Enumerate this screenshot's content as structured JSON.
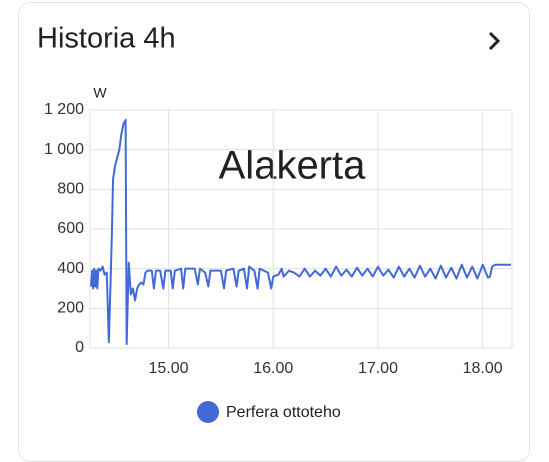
{
  "chart_data": {
    "type": "line",
    "title": "Historia 4h",
    "y_unit": "W",
    "annotation": "Alakerta",
    "annotation_color": "#e8666b",
    "grid": true,
    "legend": "bottom",
    "xlim": [
      14.25,
      18.28
    ],
    "xticks": [
      {
        "value": 15,
        "label": "15.00"
      },
      {
        "value": 16,
        "label": "16.00"
      },
      {
        "value": 17,
        "label": "17.00"
      },
      {
        "value": 18,
        "label": "18.00"
      }
    ],
    "ylim": [
      0,
      1200
    ],
    "yticks": [
      0,
      200,
      400,
      600,
      800,
      {
        "value": 1000,
        "label": "1 000"
      },
      {
        "value": 1200,
        "label": "1 200"
      }
    ],
    "x": [
      14.26,
      14.27,
      14.28,
      14.29,
      14.3,
      14.31,
      14.32,
      14.33,
      14.35,
      14.37,
      14.39,
      14.41,
      14.43,
      14.45,
      14.46,
      14.47,
      14.49,
      14.51,
      14.53,
      14.55,
      14.57,
      14.59,
      14.6,
      14.62,
      14.64,
      14.66,
      14.68,
      14.7,
      14.72,
      14.74,
      14.76,
      14.78,
      14.8,
      14.84,
      14.86,
      14.88,
      14.92,
      14.95,
      14.97,
      15.0,
      15.02,
      15.04,
      15.06,
      15.12,
      15.14,
      15.16,
      15.25,
      15.28,
      15.3,
      15.35,
      15.38,
      15.4,
      15.5,
      15.53,
      15.55,
      15.62,
      15.65,
      15.67,
      15.72,
      15.75,
      15.77,
      15.82,
      15.85,
      15.87,
      15.95,
      15.98,
      16.0,
      16.05,
      16.08,
      16.1,
      16.15,
      16.2,
      16.25,
      16.3,
      16.35,
      16.4,
      16.45,
      16.5,
      16.55,
      16.6,
      16.65,
      16.7,
      16.75,
      16.8,
      16.85,
      16.9,
      16.95,
      17.0,
      17.05,
      17.1,
      17.15,
      17.2,
      17.25,
      17.3,
      17.35,
      17.4,
      17.45,
      17.5,
      17.55,
      17.6,
      17.65,
      17.7,
      17.75,
      17.8,
      17.85,
      17.9,
      17.95,
      18.0,
      18.05,
      18.07,
      18.09,
      18.12,
      18.2,
      18.27
    ],
    "series": [
      {
        "name": "Perfera ottoteho",
        "color": "#4369d6",
        "values": [
          310,
          390,
          300,
          400,
          310,
          390,
          300,
          400,
          390,
          410,
          370,
          380,
          30,
          400,
          600,
          850,
          920,
          960,
          1000,
          1080,
          1130,
          1150,
          20,
          430,
          270,
          300,
          240,
          300,
          320,
          330,
          320,
          380,
          390,
          390,
          300,
          390,
          390,
          300,
          390,
          390,
          390,
          300,
          390,
          400,
          300,
          400,
          400,
          320,
          400,
          380,
          310,
          390,
          390,
          300,
          390,
          400,
          310,
          390,
          400,
          300,
          410,
          390,
          300,
          400,
          380,
          300,
          360,
          370,
          400,
          360,
          390,
          380,
          360,
          400,
          360,
          390,
          365,
          400,
          360,
          410,
          365,
          395,
          360,
          405,
          365,
          400,
          360,
          410,
          365,
          395,
          355,
          410,
          360,
          400,
          355,
          415,
          360,
          400,
          350,
          415,
          355,
          405,
          350,
          420,
          355,
          410,
          350,
          420,
          355,
          360,
          410,
          420,
          420,
          420
        ]
      }
    ]
  }
}
